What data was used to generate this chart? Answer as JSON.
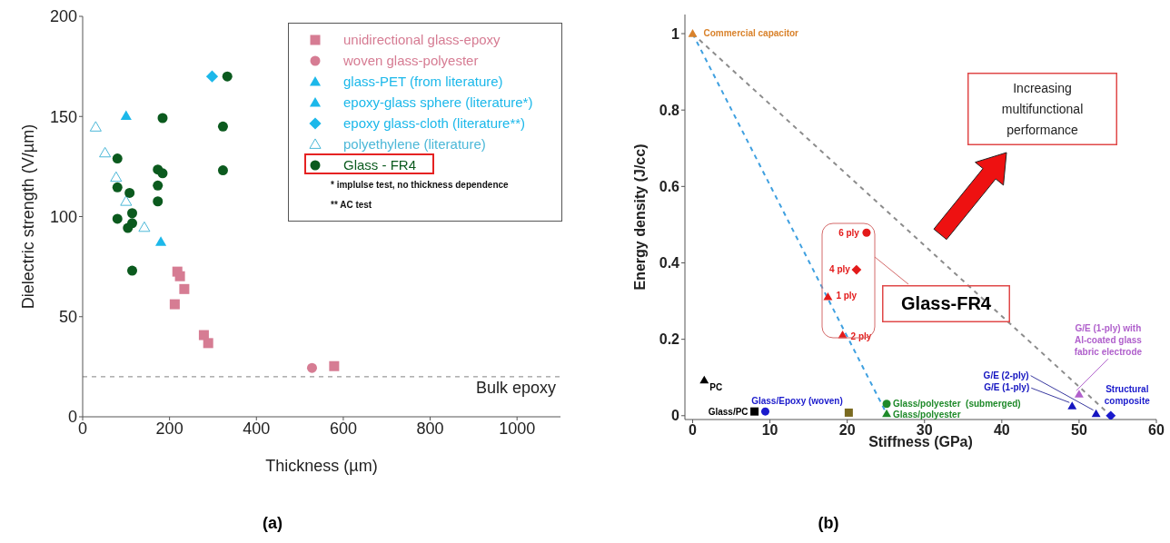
{
  "chart_data": [
    {
      "type": "scatter",
      "title": "(a)",
      "xlabel": "Thickness (µm)",
      "ylabel": "Dielectric strength (V/µm)",
      "xlim": [
        0,
        1100
      ],
      "xticks": [
        0,
        200,
        400,
        600,
        800,
        1000
      ],
      "ylim": [
        0,
        200
      ],
      "yticks": [
        0,
        50,
        100,
        150,
        200
      ],
      "legend": "top right",
      "annotations": [
        "* implulse test, no thickness dependence",
        "** AC test"
      ],
      "ref_lines": [
        {
          "axis": "y",
          "value": 20,
          "label": "Bulk epoxy",
          "color": "#808080",
          "line_style": "dashed"
        }
      ],
      "series": [
        {
          "name": "unidirectional glass-epoxy",
          "color": "#d67c93",
          "marker": "square",
          "x": [
            218,
            224,
            234,
            212,
            279,
            289,
            579
          ],
          "values": [
            72.5,
            70.2,
            63.8,
            56.2,
            40.8,
            36.8,
            25.3
          ]
        },
        {
          "name": "woven glass-polyester",
          "color": "#d67c93",
          "marker": "circle",
          "x": [
            528
          ],
          "values": [
            24.4
          ]
        },
        {
          "name": "glass-PET (from literature)",
          "color": "#1cb8ea",
          "marker": "triangle",
          "x": [
            180
          ],
          "values": [
            87.4
          ]
        },
        {
          "name": "epoxy-glass sphere (literature*)",
          "color": "#1cb8ea",
          "marker": "triangle",
          "x": [
            100
          ],
          "values": [
            150.3
          ]
        },
        {
          "name": "epoxy glass-cloth (literature**)",
          "color": "#1cb8ea",
          "marker": "diamond",
          "x": [
            298
          ],
          "values": [
            170
          ]
        },
        {
          "name": "polyethylene (literature)",
          "color": "#4cb8d8",
          "marker": "triangle",
          "x": [
            30,
            51.5,
            77,
            100,
            142
          ],
          "values": [
            144.7,
            131.8,
            119.6,
            107.6,
            94.6
          ]
        },
        {
          "name": "Glass - FR4",
          "color": "#0b5a1e",
          "marker": "circle",
          "x": [
            80,
            80,
            80,
            108,
            114,
            114,
            104,
            114,
            173,
            184,
            173,
            173,
            184,
            333,
            323,
            323
          ],
          "values": [
            129,
            114.6,
            98.9,
            111.8,
            101.7,
            96.7,
            94.3,
            73,
            123.5,
            121.6,
            115.5,
            107.6,
            149.2,
            170,
            145,
            123.1
          ]
        }
      ]
    },
    {
      "type": "scatter",
      "title": "(b)",
      "xlabel": "Stiffness (GPa)",
      "ylabel": "Energy density (J/cc)",
      "xlim": [
        -1,
        60
      ],
      "xticks": [
        0,
        10,
        20,
        30,
        40,
        50,
        60
      ],
      "ylim": [
        -0.01,
        1.05
      ],
      "yticks": [
        0,
        0.2,
        0.4,
        0.6,
        0.8,
        1
      ],
      "annotations": [
        "Increasing multifunctional performance",
        "Glass-FR4"
      ],
      "series": [
        {
          "type": "line",
          "line_style": "dashed",
          "color": "#8c8c8c",
          "x": [
            0,
            54.1
          ],
          "values": [
            1,
            0
          ]
        },
        {
          "type": "line",
          "line_style": "dashed",
          "color": "#3fa0e0",
          "x": [
            0,
            25.1
          ],
          "values": [
            1,
            0.005
          ]
        },
        {
          "name": "Commercial capacitor",
          "color": "#d9822b",
          "marker": "triangle",
          "x": [
            0
          ],
          "values": [
            1
          ]
        },
        {
          "name": "6 ply",
          "color": "#e31a1a",
          "marker": "circle",
          "x": [
            22.5
          ],
          "values": [
            0.479
          ]
        },
        {
          "name": "4 ply",
          "color": "#e31a1a",
          "marker": "diamond",
          "x": [
            21.2
          ],
          "values": [
            0.382
          ]
        },
        {
          "name": "1 ply",
          "color": "#e31a1a",
          "marker": "triangle",
          "x": [
            17.5
          ],
          "values": [
            0.311
          ]
        },
        {
          "name": "2 ply",
          "color": "#e31a1a",
          "marker": "triangle",
          "x": [
            19.4
          ],
          "values": [
            0.211
          ]
        },
        {
          "name": "PC",
          "color": "#000000",
          "marker": "triangle",
          "x": [
            1.5
          ],
          "values": [
            0.093
          ]
        },
        {
          "name": "Glass/PC",
          "color": "#000000",
          "marker": "square",
          "x": [
            8
          ],
          "values": [
            0.011
          ]
        },
        {
          "name": "Glass/Epoxy (woven)",
          "color": "#1a1acc",
          "marker": "circle",
          "x": [
            9.4
          ],
          "values": [
            0.011
          ]
        },
        {
          "color": "#7a6a20",
          "marker": "square",
          "x": [
            20.2
          ],
          "values": [
            0.008
          ]
        },
        {
          "name": "Glass/polyester  (submerged)",
          "color": "#1f8a2a",
          "marker": "circle",
          "x": [
            25.1
          ],
          "values": [
            0.031
          ]
        },
        {
          "name": "Glass/polyester",
          "color": "#1f8a2a",
          "marker": "triangle",
          "x": [
            25.1
          ],
          "values": [
            0.005
          ]
        },
        {
          "name": "G/E (2-ply)",
          "color": "#1414c0",
          "marker": "triangle",
          "x": [
            52.2
          ],
          "values": [
            0.005
          ]
        },
        {
          "name": "G/E (1-ply)",
          "color": "#1414c0",
          "marker": "triangle",
          "x": [
            49.1
          ],
          "values": [
            0.025
          ]
        },
        {
          "name": "G/E (1-ply) with Al-coated glass fabric electrode",
          "color": "#b060cc",
          "marker": "triangle",
          "x": [
            50
          ],
          "values": [
            0.056
          ]
        },
        {
          "name": "Structural composite",
          "color": "#1a1acc",
          "marker": "diamond",
          "x": [
            54.1
          ],
          "values": [
            0
          ]
        }
      ]
    }
  ]
}
